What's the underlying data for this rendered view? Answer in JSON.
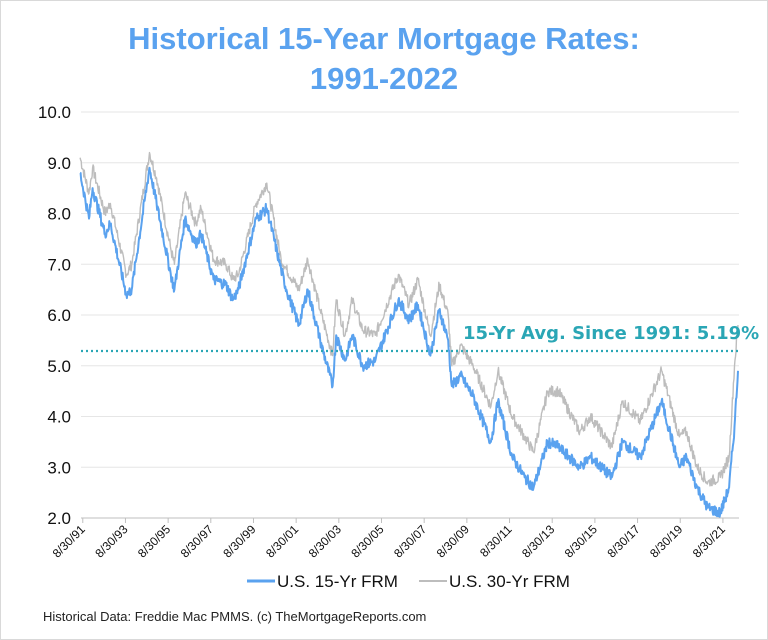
{
  "chart_data": {
    "type": "line",
    "title_lines": [
      "Historical 15-Year Mortgage Rates:",
      "1991-2022"
    ],
    "xlabel": "",
    "ylabel": "",
    "ylim": [
      2.0,
      10.0
    ],
    "y_ticks": [
      "2.0",
      "3.0",
      "4.0",
      "5.0",
      "6.0",
      "7.0",
      "8.0",
      "9.0",
      "10.0"
    ],
    "x_ticks": [
      "8/30/91",
      "8/30/93",
      "8/30/95",
      "8/30/97",
      "8/30/99",
      "8/30/01",
      "8/30/03",
      "8/30/05",
      "8/30/07",
      "8/30/09",
      "8/30/11",
      "8/30/13",
      "8/30/15",
      "8/30/17",
      "8/30/19",
      "8/30/21"
    ],
    "xlim": [
      "1991-08-30",
      "2022-07-01"
    ],
    "grid": "horizontal",
    "legend_position": "bottom",
    "average_line": {
      "value": 5.19,
      "label": "15-Yr Avg. Since 1991: 5.19%",
      "color": "#2aa6b5",
      "style": "dotted"
    },
    "series": [
      {
        "name": "U.S. 15-Yr FRM",
        "color": "#5aa2ef",
        "points": [
          [
            "1991-08",
            8.8
          ],
          [
            "1992-01",
            7.9
          ],
          [
            "1992-03",
            8.5
          ],
          [
            "1992-10",
            7.6
          ],
          [
            "1993-01",
            7.8
          ],
          [
            "1993-10",
            6.4
          ],
          [
            "1994-01",
            6.5
          ],
          [
            "1994-11",
            8.9
          ],
          [
            "1995-03",
            8.2
          ],
          [
            "1995-11",
            6.8
          ],
          [
            "1996-01",
            6.5
          ],
          [
            "1996-07",
            7.9
          ],
          [
            "1997-01",
            7.4
          ],
          [
            "1997-04",
            7.6
          ],
          [
            "1997-11",
            6.7
          ],
          [
            "1998-06",
            6.6
          ],
          [
            "1998-10",
            6.3
          ],
          [
            "1999-01",
            6.5
          ],
          [
            "1999-11",
            7.9
          ],
          [
            "2000-05",
            8.1
          ],
          [
            "2001-01",
            6.9
          ],
          [
            "2001-04",
            6.5
          ],
          [
            "2001-11",
            5.8
          ],
          [
            "2002-04",
            6.5
          ],
          [
            "2002-11",
            5.5
          ],
          [
            "2003-06",
            4.6
          ],
          [
            "2003-08",
            5.6
          ],
          [
            "2004-01",
            5.1
          ],
          [
            "2004-05",
            5.6
          ],
          [
            "2004-11",
            5.0
          ],
          [
            "2005-06",
            5.1
          ],
          [
            "2006-07",
            6.3
          ],
          [
            "2007-01",
            5.9
          ],
          [
            "2007-06",
            6.2
          ],
          [
            "2008-01",
            5.2
          ],
          [
            "2008-06",
            6.1
          ],
          [
            "2008-11",
            5.5
          ],
          [
            "2009-01",
            4.6
          ],
          [
            "2009-06",
            4.8
          ],
          [
            "2010-01",
            4.4
          ],
          [
            "2010-11",
            3.5
          ],
          [
            "2011-03",
            4.3
          ],
          [
            "2011-11",
            3.2
          ],
          [
            "2012-06",
            2.8
          ],
          [
            "2012-11",
            2.6
          ],
          [
            "2013-07",
            3.5
          ],
          [
            "2014-01",
            3.4
          ],
          [
            "2015-01",
            3.0
          ],
          [
            "2015-07",
            3.2
          ],
          [
            "2016-07",
            2.8
          ],
          [
            "2017-01",
            3.5
          ],
          [
            "2017-11",
            3.2
          ],
          [
            "2018-11",
            4.3
          ],
          [
            "2019-09",
            3.0
          ],
          [
            "2020-01",
            3.2
          ],
          [
            "2020-07",
            2.6
          ],
          [
            "2021-01",
            2.2
          ],
          [
            "2021-08",
            2.1
          ],
          [
            "2022-01",
            2.6
          ],
          [
            "2022-04",
            3.8
          ],
          [
            "2022-06",
            4.9
          ]
        ]
      },
      {
        "name": "U.S. 30-Yr FRM",
        "color": "#bdbdbd",
        "points": [
          [
            "1991-08",
            9.1
          ],
          [
            "1992-01",
            8.4
          ],
          [
            "1992-03",
            8.9
          ],
          [
            "1992-10",
            8.0
          ],
          [
            "1993-01",
            8.2
          ],
          [
            "1993-10",
            6.8
          ],
          [
            "1994-01",
            7.0
          ],
          [
            "1994-11",
            9.2
          ],
          [
            "1995-03",
            8.7
          ],
          [
            "1995-11",
            7.3
          ],
          [
            "1996-01",
            7.0
          ],
          [
            "1996-07",
            8.4
          ],
          [
            "1997-01",
            7.8
          ],
          [
            "1997-04",
            8.1
          ],
          [
            "1997-11",
            7.1
          ],
          [
            "1998-06",
            7.0
          ],
          [
            "1998-10",
            6.7
          ],
          [
            "1999-01",
            6.8
          ],
          [
            "1999-11",
            8.2
          ],
          [
            "2000-05",
            8.6
          ],
          [
            "2001-01",
            7.1
          ],
          [
            "2001-04",
            6.9
          ],
          [
            "2001-11",
            6.5
          ],
          [
            "2002-04",
            7.1
          ],
          [
            "2002-11",
            6.1
          ],
          [
            "2003-06",
            5.2
          ],
          [
            "2003-08",
            6.3
          ],
          [
            "2004-01",
            5.6
          ],
          [
            "2004-05",
            6.3
          ],
          [
            "2004-11",
            5.7
          ],
          [
            "2005-06",
            5.6
          ],
          [
            "2006-07",
            6.8
          ],
          [
            "2007-01",
            6.2
          ],
          [
            "2007-06",
            6.7
          ],
          [
            "2008-01",
            5.6
          ],
          [
            "2008-06",
            6.6
          ],
          [
            "2008-11",
            6.0
          ],
          [
            "2009-01",
            5.0
          ],
          [
            "2009-06",
            5.4
          ],
          [
            "2010-01",
            5.0
          ],
          [
            "2010-11",
            4.2
          ],
          [
            "2011-03",
            4.9
          ],
          [
            "2011-11",
            4.0
          ],
          [
            "2012-06",
            3.6
          ],
          [
            "2012-11",
            3.3
          ],
          [
            "2013-07",
            4.5
          ],
          [
            "2014-01",
            4.5
          ],
          [
            "2015-01",
            3.7
          ],
          [
            "2015-07",
            4.0
          ],
          [
            "2016-07",
            3.4
          ],
          [
            "2017-01",
            4.3
          ],
          [
            "2017-11",
            3.9
          ],
          [
            "2018-11",
            4.9
          ],
          [
            "2019-09",
            3.6
          ],
          [
            "2020-01",
            3.7
          ],
          [
            "2020-07",
            3.0
          ],
          [
            "2021-01",
            2.7
          ],
          [
            "2021-08",
            2.8
          ],
          [
            "2022-01",
            3.2
          ],
          [
            "2022-04",
            5.0
          ],
          [
            "2022-06",
            5.8
          ]
        ]
      }
    ]
  },
  "footnote": "Historical Data: Freddie Mac PMMS. (c) TheMortgageReports.com"
}
